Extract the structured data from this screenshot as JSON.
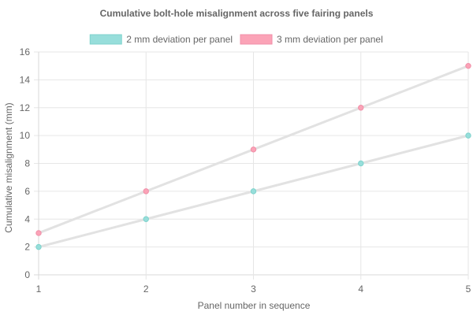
{
  "chart_data": {
    "type": "line",
    "title": "Cumulative bolt-hole misalignment across five fairing panels",
    "xlabel": "Panel number in sequence",
    "ylabel": "Cumulative misalignment (mm)",
    "x": [
      1,
      2,
      3,
      4,
      5
    ],
    "xlim": [
      1,
      5
    ],
    "ylim": [
      0,
      16
    ],
    "y_ticks": [
      0,
      2,
      4,
      6,
      8,
      10,
      12,
      14,
      16
    ],
    "grid": true,
    "legend_position": "top",
    "series": [
      {
        "name": "2 mm deviation per panel",
        "values": [
          2,
          4,
          6,
          8,
          10
        ],
        "color": "#7fd3cc",
        "fill_color": "#97dedb"
      },
      {
        "name": "3 mm deviation per panel",
        "values": [
          3,
          6,
          9,
          12,
          15
        ],
        "color": "#f08fa8",
        "fill_color": "#fba3b7"
      }
    ]
  }
}
